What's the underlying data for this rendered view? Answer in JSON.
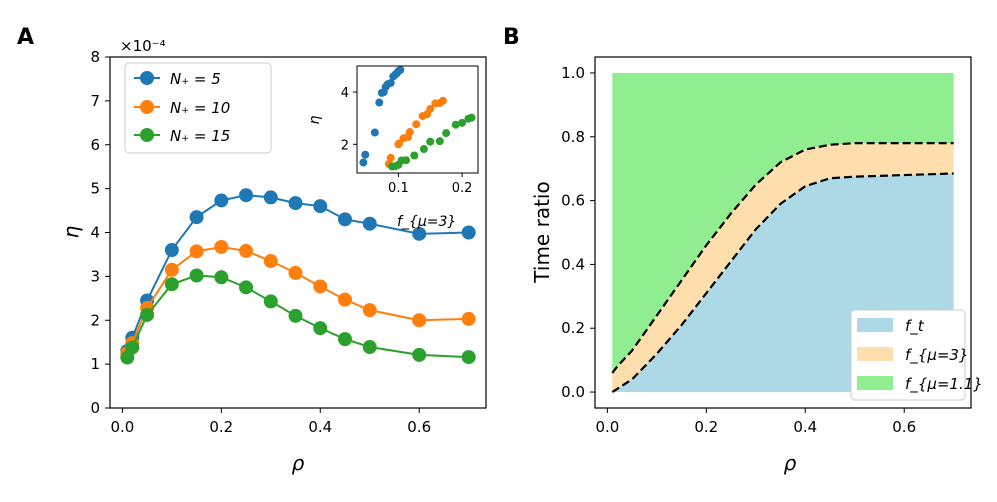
{
  "chart_data": [
    {
      "panel_label": "A",
      "type": "line",
      "xlabel": "ρ",
      "ylabel": "η",
      "scale_note": "×10⁻⁴",
      "xlim": [
        -0.025,
        0.735
      ],
      "ylim": [
        0,
        8
      ],
      "xticks": [
        0.0,
        0.2,
        0.4,
        0.6
      ],
      "xtick_labels": [
        "0.0",
        "0.2",
        "0.4",
        "0.6"
      ],
      "yticks": [
        0,
        1,
        2,
        3,
        4,
        5,
        6,
        7,
        8
      ],
      "ytick_labels": [
        "0",
        "1",
        "2",
        "3",
        "4",
        "5",
        "6",
        "7",
        "8"
      ],
      "x": [
        0.01,
        0.02,
        0.05,
        0.1,
        0.15,
        0.2,
        0.25,
        0.3,
        0.35,
        0.4,
        0.45,
        0.5,
        0.6,
        0.7
      ],
      "series": [
        {
          "name": "N₊ = 5",
          "color": "#1f77b4",
          "values": [
            1.3,
            1.6,
            2.45,
            3.6,
            4.35,
            4.73,
            4.85,
            4.8,
            4.67,
            4.6,
            4.3,
            4.2,
            3.97,
            4.0
          ]
        },
        {
          "name": "N₊ = 10",
          "color": "#ff7f0e",
          "values": [
            1.25,
            1.48,
            2.28,
            3.15,
            3.57,
            3.67,
            3.58,
            3.35,
            3.08,
            2.77,
            2.47,
            2.23,
            2.0,
            2.03
          ]
        },
        {
          "name": "N₊ = 15",
          "color": "#2ca02c",
          "values": [
            1.15,
            1.38,
            2.12,
            2.82,
            3.02,
            2.98,
            2.75,
            2.43,
            2.1,
            1.82,
            1.57,
            1.39,
            1.21,
            1.16
          ]
        }
      ],
      "legend": {
        "placement": "top-left",
        "entries": [
          "N₊ = 5",
          "N₊ = 10",
          "N₊ = 15"
        ]
      },
      "inset": {
        "type": "scatter",
        "xlabel": "f_{μ=3}",
        "ylabel": "η",
        "xlim": [
          0.035,
          0.225
        ],
        "ylim": [
          0.9,
          5.0
        ],
        "xticks": [
          0.1,
          0.2
        ],
        "xtick_labels": [
          "0.1",
          "0.2"
        ],
        "yticks": [
          2,
          4
        ],
        "ytick_labels": [
          "2",
          "4"
        ],
        "series": [
          {
            "name": "N₊ = 5",
            "color": "#1f77b4",
            "points": [
              [
                0.045,
                1.3
              ],
              [
                0.048,
                1.6
              ],
              [
                0.063,
                2.45
              ],
              [
                0.07,
                3.6
              ],
              [
                0.074,
                3.97
              ],
              [
                0.077,
                4.0
              ],
              [
                0.08,
                4.2
              ],
              [
                0.083,
                4.3
              ],
              [
                0.088,
                4.35
              ],
              [
                0.092,
                4.6
              ],
              [
                0.095,
                4.67
              ],
              [
                0.098,
                4.73
              ],
              [
                0.1,
                4.8
              ],
              [
                0.103,
                4.85
              ]
            ]
          },
          {
            "name": "N₊ = 10",
            "color": "#ff7f0e",
            "points": [
              [
                0.085,
                1.25
              ],
              [
                0.088,
                1.48
              ],
              [
                0.1,
                2.0
              ],
              [
                0.101,
                2.03
              ],
              [
                0.108,
                2.23
              ],
              [
                0.115,
                2.28
              ],
              [
                0.118,
                2.47
              ],
              [
                0.128,
                2.77
              ],
              [
                0.138,
                3.08
              ],
              [
                0.145,
                3.15
              ],
              [
                0.15,
                3.35
              ],
              [
                0.158,
                3.57
              ],
              [
                0.165,
                3.58
              ],
              [
                0.17,
                3.67
              ]
            ]
          },
          {
            "name": "N₊ = 15",
            "color": "#2ca02c",
            "points": [
              [
                0.09,
                1.15
              ],
              [
                0.095,
                1.16
              ],
              [
                0.1,
                1.21
              ],
              [
                0.105,
                1.38
              ],
              [
                0.112,
                1.39
              ],
              [
                0.125,
                1.57
              ],
              [
                0.14,
                1.82
              ],
              [
                0.15,
                2.1
              ],
              [
                0.165,
                2.12
              ],
              [
                0.175,
                2.43
              ],
              [
                0.19,
                2.75
              ],
              [
                0.2,
                2.82
              ],
              [
                0.21,
                2.98
              ],
              [
                0.215,
                3.02
              ]
            ]
          }
        ]
      }
    },
    {
      "panel_label": "B",
      "type": "area",
      "xlabel": "ρ",
      "ylabel": "Time ratio",
      "xlim": [
        -0.025,
        0.735
      ],
      "ylim": [
        -0.05,
        1.05
      ],
      "xticks": [
        0.0,
        0.2,
        0.4,
        0.6
      ],
      "xtick_labels": [
        "0.0",
        "0.2",
        "0.4",
        "0.6"
      ],
      "yticks": [
        0.0,
        0.2,
        0.4,
        0.6,
        0.8,
        1.0
      ],
      "ytick_labels": [
        "0.0",
        "0.2",
        "0.4",
        "0.6",
        "0.8",
        "1.0"
      ],
      "x": [
        0.01,
        0.02,
        0.05,
        0.1,
        0.15,
        0.2,
        0.25,
        0.3,
        0.35,
        0.4,
        0.45,
        0.5,
        0.6,
        0.7
      ],
      "series": [
        {
          "name": "f_t",
          "color": "#add8e6",
          "upper": [
            0.0,
            0.01,
            0.04,
            0.12,
            0.21,
            0.31,
            0.41,
            0.51,
            0.59,
            0.645,
            0.67,
            0.675,
            0.68,
            0.685
          ]
        },
        {
          "name": "f_{μ=3}",
          "color": "#ffdead",
          "upper": [
            0.06,
            0.08,
            0.13,
            0.24,
            0.35,
            0.46,
            0.56,
            0.65,
            0.72,
            0.76,
            0.775,
            0.78,
            0.78,
            0.78
          ]
        },
        {
          "name": "f_{μ=1.1}",
          "color": "#90ee90",
          "upper": [
            1.0,
            1.0,
            1.0,
            1.0,
            1.0,
            1.0,
            1.0,
            1.0,
            1.0,
            1.0,
            1.0,
            1.0,
            1.0,
            1.0
          ]
        }
      ],
      "legend": {
        "placement": "bottom-right",
        "entries": [
          "f_t",
          "f_{μ=3}",
          "f_{μ=1.1}"
        ]
      }
    }
  ]
}
